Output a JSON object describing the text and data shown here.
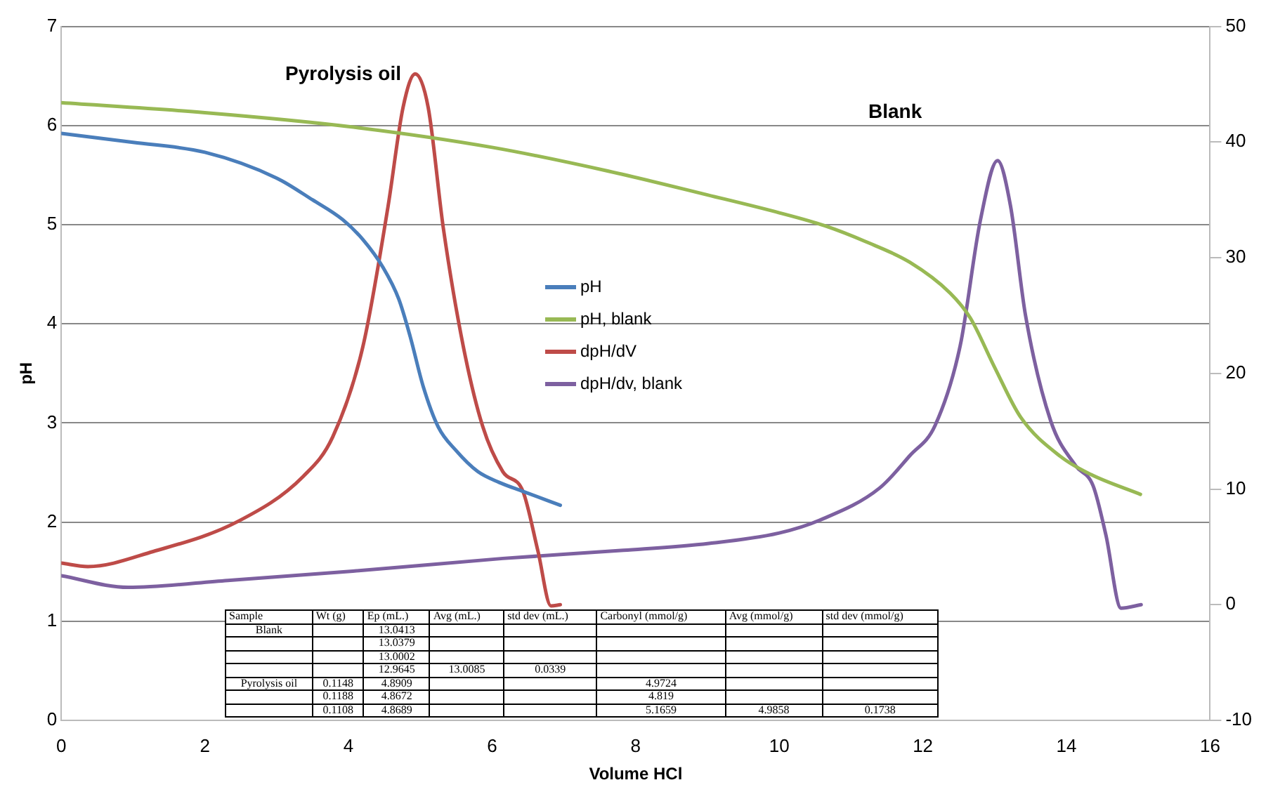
{
  "chart_data": {
    "type": "line",
    "xlabel": "Volume HCl",
    "ylabel": "pH",
    "xlim": [
      0,
      16
    ],
    "xticks": [
      0,
      2,
      4,
      6,
      8,
      10,
      12,
      14,
      16
    ],
    "ylim": [
      0,
      7
    ],
    "yticks": [
      0,
      1,
      2,
      3,
      4,
      5,
      6,
      7
    ],
    "y2lim": [
      -10,
      50
    ],
    "y2ticks": [
      -10,
      0,
      10,
      20,
      30,
      40,
      50
    ],
    "grid": "y",
    "legend": "center",
    "marker": "none",
    "line_style": "solid",
    "series": [
      {
        "name": "pH",
        "color": "#4a7ebb",
        "x": [
          0,
          1,
          2,
          3,
          3.5,
          3.92,
          4.2,
          4.48,
          4.7,
          4.86,
          5.04,
          5.25,
          5.5,
          5.8,
          6.1,
          6.43,
          6.95
        ],
        "values": [
          5.92,
          5.83,
          5.73,
          5.47,
          5.25,
          5.05,
          4.85,
          4.57,
          4.25,
          3.87,
          3.37,
          2.96,
          2.72,
          2.51,
          2.4,
          2.31,
          2.17
        ]
      },
      {
        "name": "pH, blank",
        "color": "#98b954",
        "x": [
          0,
          2,
          4,
          6,
          7.62,
          9,
          10,
          10.63,
          11.2,
          11.82,
          12.38,
          12.66,
          13,
          13.36,
          13.92,
          14.34,
          15.03
        ],
        "values": [
          6.23,
          6.13,
          5.99,
          5.78,
          5.54,
          5.3,
          5.12,
          4.99,
          4.83,
          4.62,
          4.31,
          4.06,
          3.56,
          3.06,
          2.66,
          2.48,
          2.28
        ]
      },
      {
        "name": "dpH/dV",
        "color": "#be4b48",
        "axis": "y2",
        "x": [
          0,
          0.37,
          1.28,
          2.46,
          3.37,
          3.78,
          4.2,
          4.55,
          4.76,
          4.93,
          5.11,
          5.32,
          5.6,
          5.87,
          6.15,
          6.43,
          6.64,
          6.82,
          6.95
        ],
        "values": [
          3.6,
          3.3,
          4.6,
          7.2,
          11.1,
          14.5,
          22.3,
          34.4,
          43,
          45.9,
          43,
          32.6,
          22.3,
          15.4,
          11.5,
          9.8,
          4.6,
          -0.1,
          0
        ]
      },
      {
        "name": "dpH/dv, blank",
        "color": "#7d60a0",
        "axis": "y2",
        "x": [
          0,
          0.93,
          2.32,
          4.06,
          6.15,
          7.83,
          9.02,
          10,
          10.56,
          11.4,
          11.82,
          12.17,
          12.52,
          12.8,
          13.04,
          13.22,
          13.43,
          13.78,
          14.13,
          14.37,
          14.55,
          14.76,
          15.04
        ],
        "values": [
          2.5,
          1.5,
          2.1,
          2.9,
          4,
          4.7,
          5.3,
          6.2,
          7.3,
          10.1,
          12.9,
          15.5,
          22.4,
          33.2,
          38.4,
          34.5,
          25,
          15.9,
          12,
          10.3,
          6,
          -0.3,
          0
        ]
      }
    ],
    "annotations": [
      "Pyrolysis oil",
      "Blank",
      "Sample\tWt (g)\tEp (mL.)\tAvg (mL.)\tstd dev (mL.)\tCarbonyl (mmol/g)\tAvg (mmol/g)\tstd dev (mmol/g)",
      "Blank\t\t13.0413\t\t\t\t\t",
      "\t\t13.0379\t\t\t\t\t",
      "\t\t13.0002\t\t\t\t\t",
      "\t\t12.9645\t13.0085\t0.0339\t\t\t",
      "Pyrolysis oil\t0.1148\t4.8909\t\t\t4.9724\t\t",
      "\t0.1188\t4.8672\t\t\t4.819\t\t",
      "\t0.1108\t4.8689\t\t\t5.1659\t4.9858\t0.1738"
    ]
  }
}
